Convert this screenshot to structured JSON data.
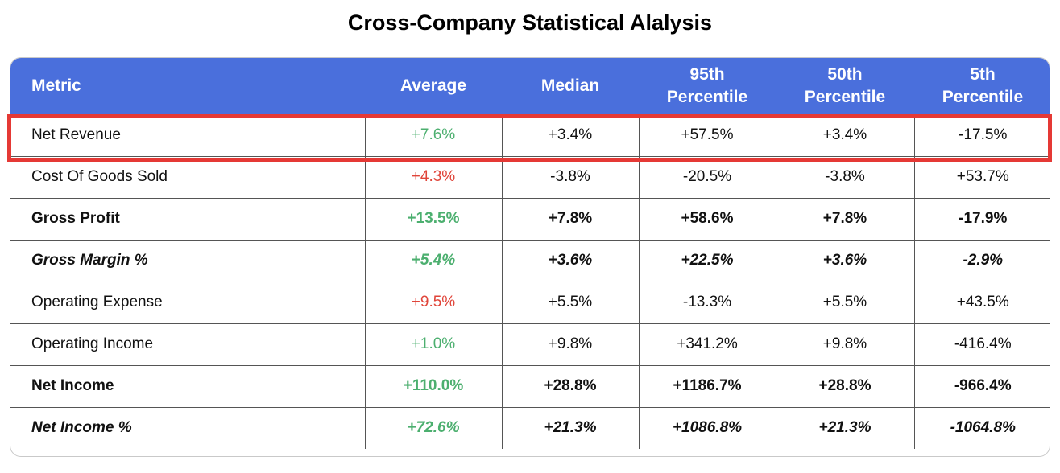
{
  "title": "Cross-Company Statistical Alalysis",
  "colors": {
    "header_bg": "#4a6fdc",
    "positive": "#4caf6f",
    "negative": "#e0453a",
    "highlight": "#e53935"
  },
  "table": {
    "headers": {
      "metric": "Metric",
      "average": "Average",
      "median": "Median",
      "p95_line1": "95th",
      "p95_line2": "Percentile",
      "p50_line1": "50th",
      "p50_line2": "Percentile",
      "p5_line1": "5th",
      "p5_line2": "Percentile"
    },
    "rows": [
      {
        "metric": "Net Revenue",
        "average": "+7.6%",
        "median": "+3.4%",
        "p95": "+57.5%",
        "p50": "+3.4%",
        "p5": "-17.5%",
        "highlighted": true
      },
      {
        "metric": "Cost Of Goods Sold",
        "average": "+4.3%",
        "median": "-3.8%",
        "p95": "-20.5%",
        "p50": "-3.8%",
        "p5": "+53.7%"
      },
      {
        "metric": "Gross Profit",
        "average": "+13.5%",
        "median": "+7.8%",
        "p95": "+58.6%",
        "p50": "+7.8%",
        "p5": "-17.9%"
      },
      {
        "metric": "Gross Margin %",
        "average": "+5.4%",
        "median": "+3.6%",
        "p95": "+22.5%",
        "p50": "+3.6%",
        "p5": "-2.9%"
      },
      {
        "metric": "Operating Expense",
        "average": "+9.5%",
        "median": "+5.5%",
        "p95": "-13.3%",
        "p50": "+5.5%",
        "p5": "+43.5%"
      },
      {
        "metric": "Operating Income",
        "average": "+1.0%",
        "median": "+9.8%",
        "p95": "+341.2%",
        "p50": "+9.8%",
        "p5": "-416.4%"
      },
      {
        "metric": "Net Income",
        "average": "+110.0%",
        "median": "+28.8%",
        "p95": "+1186.7%",
        "p50": "+28.8%",
        "p5": "-966.4%"
      },
      {
        "metric": "Net Income %",
        "average": "+72.6%",
        "median": "+21.3%",
        "p95": "+1086.8%",
        "p50": "+21.3%",
        "p5": "-1064.8%"
      }
    ]
  }
}
